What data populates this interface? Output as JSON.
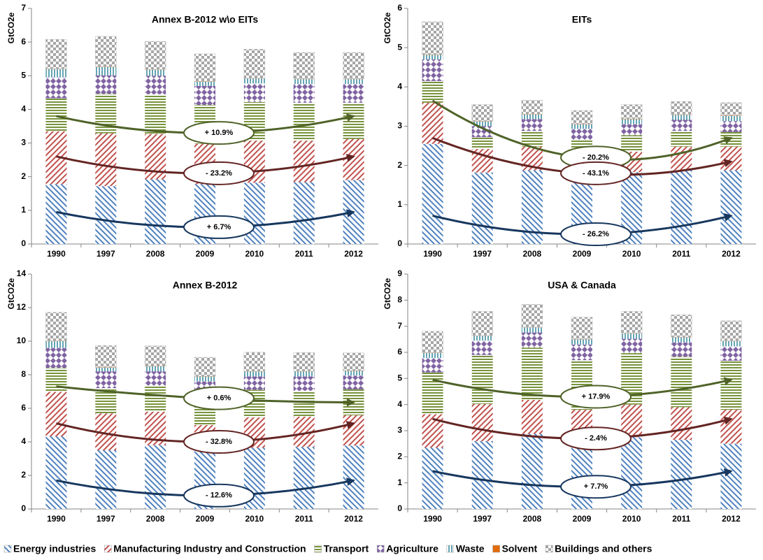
{
  "chart_data": [
    {
      "type": "stacked_bar",
      "title": "Annex B-2012 w\\o EITs",
      "y_label": "GtCO2e",
      "categories": [
        "1990",
        "1997",
        "2008",
        "2009",
        "2010",
        "2011",
        "2012"
      ],
      "ylim": [
        0,
        7
      ],
      "yticks": [
        0,
        1,
        2,
        3,
        4,
        5,
        6,
        7
      ],
      "grid": false,
      "series": [
        {
          "name": "Energy industries",
          "color": "#4f81bd",
          "values": [
            1.78,
            1.72,
            1.92,
            1.78,
            1.82,
            1.84,
            1.9
          ]
        },
        {
          "name": "Manufacturing Industry and Construction",
          "color": "#c0504d",
          "values": [
            1.57,
            1.57,
            1.35,
            1.2,
            1.25,
            1.23,
            1.22
          ]
        },
        {
          "name": "Transport",
          "color": "#77933c",
          "values": [
            0.98,
            1.17,
            1.18,
            1.15,
            1.15,
            1.13,
            1.08
          ]
        },
        {
          "name": "Agriculture",
          "color": "#8064a2",
          "values": [
            0.62,
            0.55,
            0.55,
            0.57,
            0.55,
            0.55,
            0.55
          ]
        },
        {
          "name": "Waste",
          "color": "#31859c",
          "values": [
            0.25,
            0.25,
            0.18,
            0.12,
            0.15,
            0.15,
            0.15
          ]
        },
        {
          "name": "Solvent",
          "color": "#e46c0a",
          "values": [
            0.01,
            0.01,
            0.01,
            0.01,
            0.01,
            0.01,
            0.01
          ]
        },
        {
          "name": "Buildings and others",
          "color": "#a6a6a6",
          "values": [
            0.87,
            0.9,
            0.83,
            0.82,
            0.86,
            0.78,
            0.78
          ]
        }
      ],
      "arrows": [
        {
          "label": "+ 10.9%",
          "color": "#4f6228",
          "from": 3.8,
          "via": 3.3,
          "to": 3.8
        },
        {
          "label": "- 23.2%",
          "color": "#632523",
          "from": 2.6,
          "via": 2.1,
          "to": 2.6
        },
        {
          "label": "+ 6.7%",
          "color": "#17375e",
          "from": 0.95,
          "via": 0.5,
          "to": 0.95
        }
      ]
    },
    {
      "type": "stacked_bar",
      "title": "EITs",
      "y_label": "GtCO2e",
      "categories": [
        "1990",
        "1997",
        "2008",
        "2009",
        "2010",
        "2011",
        "2012"
      ],
      "ylim": [
        0,
        6
      ],
      "yticks": [
        0,
        1,
        2,
        3,
        4,
        5,
        6
      ],
      "grid": false,
      "series": [
        {
          "name": "Energy industries",
          "color": "#4f81bd",
          "values": [
            2.55,
            1.82,
            1.88,
            1.75,
            1.83,
            1.88,
            1.88
          ]
        },
        {
          "name": "Manufacturing Industry and Construction",
          "color": "#c0504d",
          "values": [
            1.05,
            0.6,
            0.6,
            0.5,
            0.52,
            0.6,
            0.6
          ]
        },
        {
          "name": "Transport",
          "color": "#77933c",
          "values": [
            0.55,
            0.3,
            0.4,
            0.4,
            0.42,
            0.4,
            0.37
          ]
        },
        {
          "name": "Agriculture",
          "color": "#8064a2",
          "values": [
            0.55,
            0.28,
            0.3,
            0.28,
            0.28,
            0.28,
            0.28
          ]
        },
        {
          "name": "Waste",
          "color": "#31859c",
          "values": [
            0.12,
            0.12,
            0.12,
            0.12,
            0.13,
            0.13,
            0.13
          ]
        },
        {
          "name": "Solvent",
          "color": "#e46c0a",
          "values": [
            0.01,
            0.01,
            0.01,
            0.01,
            0.01,
            0.01,
            0.01
          ]
        },
        {
          "name": "Buildings and others",
          "color": "#a6a6a6",
          "values": [
            0.83,
            0.42,
            0.35,
            0.34,
            0.36,
            0.33,
            0.33
          ]
        }
      ],
      "arrows": [
        {
          "label": "- 20.2%",
          "color": "#4f6228",
          "from": 3.65,
          "via": 2.2,
          "to": 2.7
        },
        {
          "label": "- 43.1%",
          "color": "#632523",
          "from": 2.7,
          "via": 1.8,
          "to": 2.1
        },
        {
          "label": "- 26.2%",
          "color": "#17375e",
          "from": 0.72,
          "via": 0.25,
          "to": 0.72
        }
      ]
    },
    {
      "type": "stacked_bar",
      "title": "Annex B-2012",
      "y_label": "GtCO2e",
      "categories": [
        "1990",
        "1997",
        "2008",
        "2009",
        "2010",
        "2011",
        "2012"
      ],
      "ylim": [
        0,
        14
      ],
      "yticks": [
        0,
        2,
        4,
        6,
        8,
        10,
        12,
        14
      ],
      "grid": false,
      "series": [
        {
          "name": "Energy industries",
          "color": "#4f81bd",
          "values": [
            4.33,
            3.5,
            3.8,
            3.5,
            3.65,
            3.7,
            3.78
          ]
        },
        {
          "name": "Manufacturing Industry and Construction",
          "color": "#c0504d",
          "values": [
            2.65,
            2.2,
            2.0,
            1.5,
            1.8,
            1.8,
            1.8
          ]
        },
        {
          "name": "Transport",
          "color": "#77933c",
          "values": [
            1.42,
            1.5,
            1.55,
            1.7,
            1.65,
            1.55,
            1.55
          ]
        },
        {
          "name": "Agriculture",
          "color": "#8064a2",
          "values": [
            1.2,
            1.0,
            0.85,
            0.9,
            0.8,
            0.85,
            0.82
          ]
        },
        {
          "name": "Waste",
          "color": "#31859c",
          "values": [
            0.4,
            0.22,
            0.3,
            0.3,
            0.3,
            0.3,
            0.28
          ]
        },
        {
          "name": "Solvent",
          "color": "#e46c0a",
          "values": [
            0.02,
            0.02,
            0.02,
            0.02,
            0.02,
            0.02,
            0.02
          ]
        },
        {
          "name": "Buildings and others",
          "color": "#a6a6a6",
          "values": [
            1.7,
            1.3,
            1.2,
            1.12,
            1.12,
            1.1,
            1.05
          ]
        }
      ],
      "arrows": [
        {
          "label": "+ 0.6%",
          "color": "#4f6228",
          "from": 7.3,
          "via": 6.6,
          "to": 6.35
        },
        {
          "label": "- 32.8%",
          "color": "#632523",
          "from": 5.1,
          "via": 4.0,
          "to": 5.1
        },
        {
          "label": "- 12.6%",
          "color": "#17375e",
          "from": 1.7,
          "via": 0.8,
          "to": 1.7
        }
      ]
    },
    {
      "type": "stacked_bar",
      "title": "USA & Canada",
      "y_label": "GtCO2e",
      "categories": [
        "1990",
        "1997",
        "2008",
        "2009",
        "2010",
        "2011",
        "2012"
      ],
      "ylim": [
        0,
        9
      ],
      "yticks": [
        0,
        1,
        2,
        3,
        4,
        5,
        6,
        7,
        8,
        9
      ],
      "grid": false,
      "series": [
        {
          "name": "Energy industries",
          "color": "#4f81bd",
          "values": [
            2.35,
            2.6,
            2.88,
            2.65,
            2.75,
            2.65,
            2.5
          ]
        },
        {
          "name": "Manufacturing Industry and Construction",
          "color": "#c0504d",
          "values": [
            1.28,
            1.42,
            1.3,
            1.15,
            1.25,
            1.25,
            1.3
          ]
        },
        {
          "name": "Transport",
          "color": "#77933c",
          "values": [
            1.6,
            1.88,
            2.0,
            1.9,
            1.97,
            1.93,
            1.88
          ]
        },
        {
          "name": "Agriculture",
          "color": "#8064a2",
          "values": [
            0.55,
            0.55,
            0.58,
            0.6,
            0.55,
            0.55,
            0.55
          ]
        },
        {
          "name": "Waste",
          "color": "#31859c",
          "values": [
            0.2,
            0.18,
            0.2,
            0.2,
            0.2,
            0.2,
            0.2
          ]
        },
        {
          "name": "Solvent",
          "color": "#e46c0a",
          "values": [
            0.01,
            0.01,
            0.01,
            0.01,
            0.01,
            0.01,
            0.01
          ]
        },
        {
          "name": "Buildings and others",
          "color": "#a6a6a6",
          "values": [
            0.82,
            0.93,
            0.87,
            0.84,
            0.84,
            0.85,
            0.77
          ]
        }
      ],
      "arrows": [
        {
          "label": "+ 17.9%",
          "color": "#4f6228",
          "from": 4.95,
          "via": 4.3,
          "to": 4.95
        },
        {
          "label": "- 2.4%",
          "color": "#632523",
          "from": 3.45,
          "via": 2.7,
          "to": 3.45
        },
        {
          "label": "+ 7.7%",
          "color": "#17375e",
          "from": 1.45,
          "via": 0.85,
          "to": 1.45
        }
      ]
    }
  ]
}
